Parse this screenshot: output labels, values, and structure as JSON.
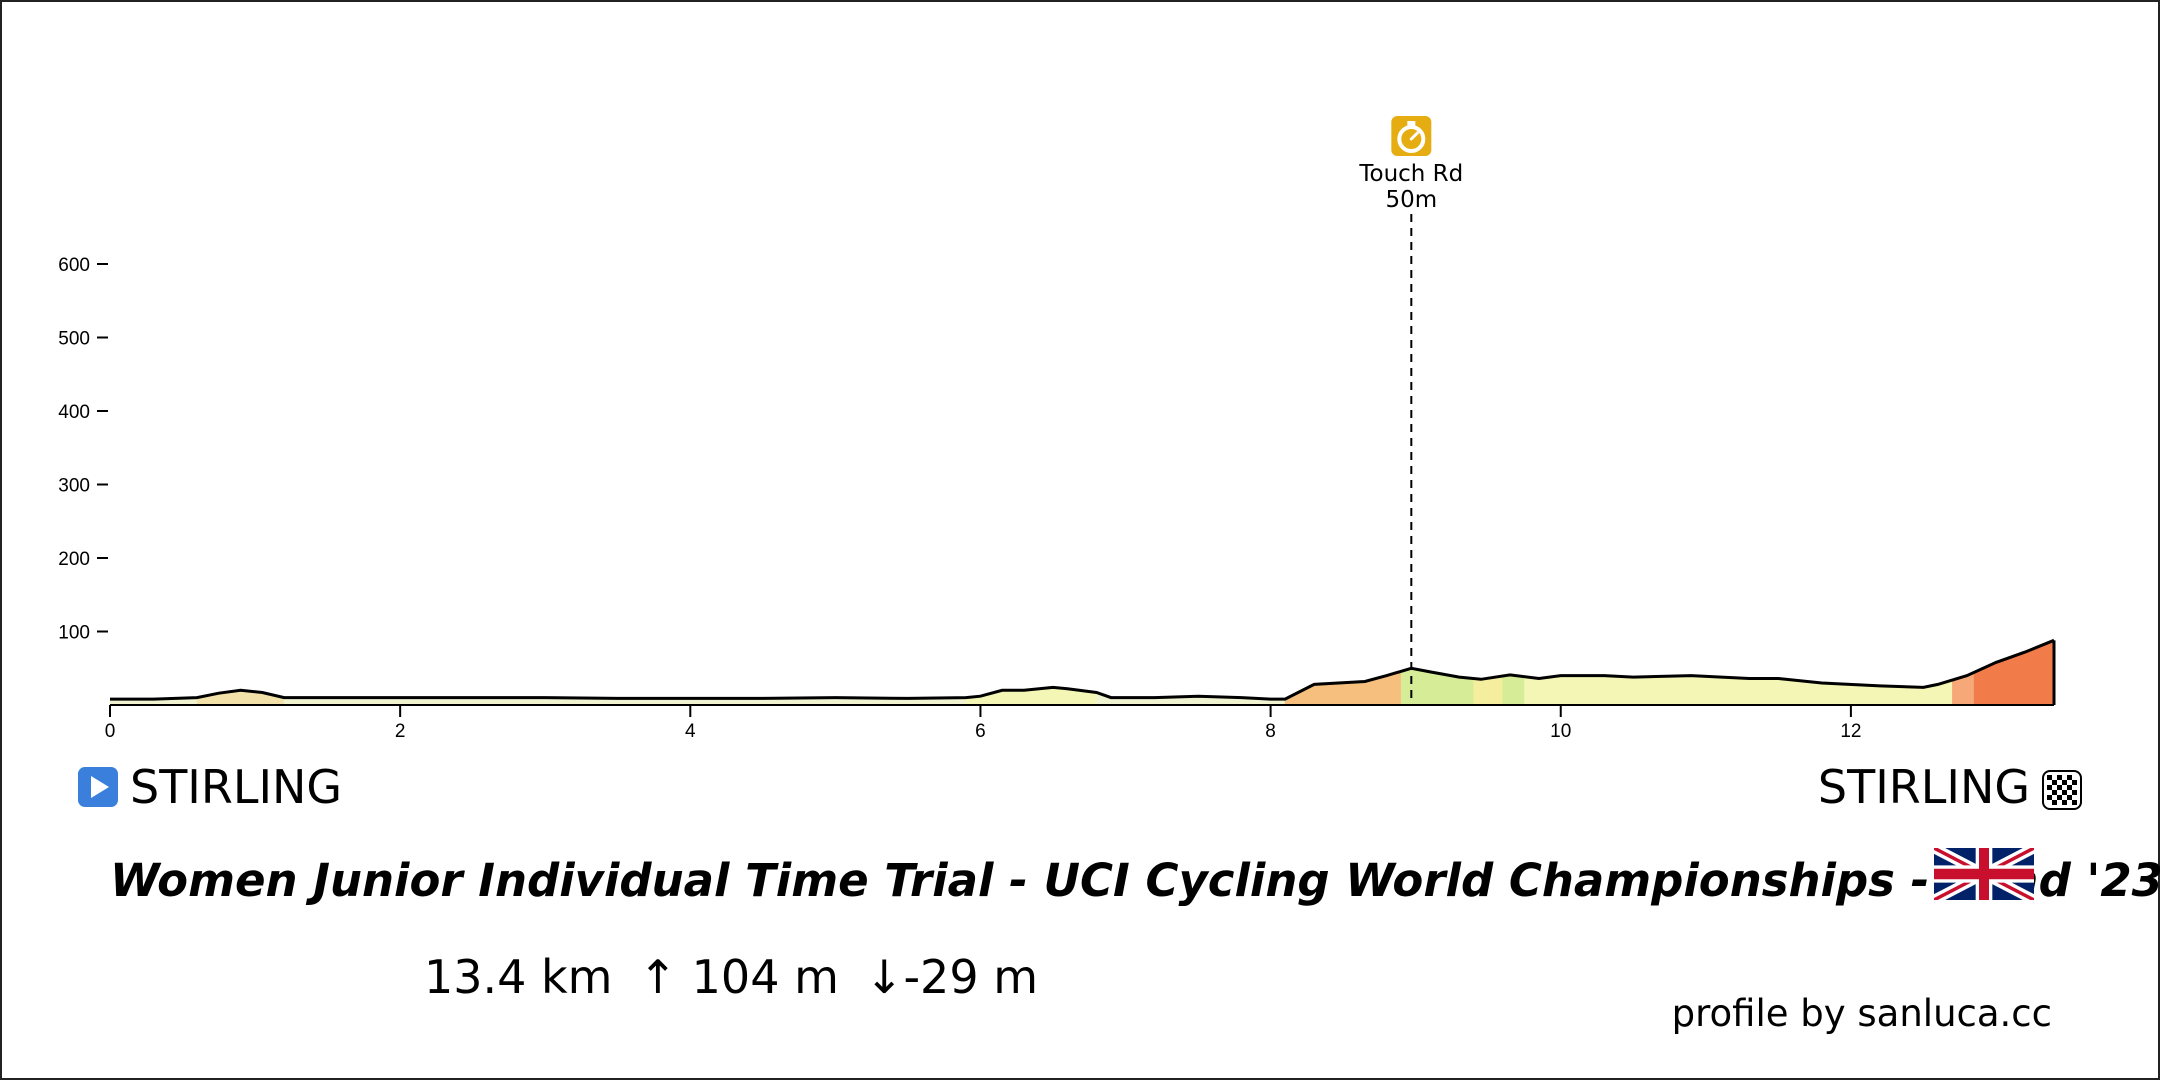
{
  "chart_data": {
    "type": "area",
    "title": "Women Junior Individual Time Trial - UCI Cycling World Championships - Road '23",
    "xlabel": "",
    "ylabel": "",
    "xlim": [
      0,
      13.4
    ],
    "ylim": [
      0,
      650
    ],
    "x_ticks": [
      0,
      2,
      4,
      6,
      8,
      10,
      12
    ],
    "y_ticks": [
      100,
      200,
      300,
      400,
      500,
      600
    ],
    "grid": false,
    "profile": {
      "x": [
        0,
        0.3,
        0.6,
        0.75,
        0.9,
        1.05,
        1.2,
        1.5,
        2,
        2.5,
        3,
        3.5,
        4,
        4.5,
        5,
        5.5,
        5.9,
        6.0,
        6.15,
        6.3,
        6.5,
        6.6,
        6.8,
        6.9,
        7.2,
        7.5,
        7.8,
        8.0,
        8.1,
        8.3,
        8.65,
        8.8,
        8.97,
        9.1,
        9.3,
        9.45,
        9.65,
        9.85,
        10.0,
        10.3,
        10.5,
        10.9,
        11.3,
        11.5,
        11.8,
        12.2,
        12.5,
        12.6,
        12.8,
        13.0,
        13.2,
        13.4
      ],
      "y": [
        8,
        8,
        10,
        16,
        20,
        17,
        10,
        10,
        10,
        10,
        10,
        9,
        9,
        9,
        10,
        9,
        10,
        12,
        20,
        20,
        24,
        22,
        17,
        10,
        10,
        12,
        10,
        8,
        8,
        28,
        32,
        40,
        50,
        45,
        38,
        35,
        41,
        36,
        40,
        40,
        38,
        40,
        36,
        36,
        30,
        26,
        24,
        28,
        40,
        58,
        72,
        88
      ]
    },
    "segments": [
      {
        "x0": 0,
        "x1": 0.6,
        "color": "#f0f3cf"
      },
      {
        "x0": 0.6,
        "x1": 1.2,
        "color": "#f2e2aa"
      },
      {
        "x0": 1.2,
        "x1": 5.9,
        "color": "#f0f3cf"
      },
      {
        "x0": 5.9,
        "x1": 6.8,
        "color": "#f3f6b4"
      },
      {
        "x0": 6.8,
        "x1": 8.1,
        "color": "#f0f3cf"
      },
      {
        "x0": 8.1,
        "x1": 8.9,
        "color": "#f6bf7e"
      },
      {
        "x0": 8.9,
        "x1": 9.4,
        "color": "#d7ec96"
      },
      {
        "x0": 9.4,
        "x1": 9.6,
        "color": "#f5ee9e"
      },
      {
        "x0": 9.6,
        "x1": 9.75,
        "color": "#d7ec96"
      },
      {
        "x0": 9.75,
        "x1": 12.7,
        "color": "#f3f6b4"
      },
      {
        "x0": 12.7,
        "x1": 12.85,
        "color": "#f6a878"
      },
      {
        "x0": 12.85,
        "x1": 13.4,
        "color": "#f27b4a"
      }
    ],
    "marker": {
      "x": 8.97,
      "name": "Touch Rd",
      "elevation_label": "50m",
      "color": "#e6ad12"
    }
  },
  "start": {
    "label": "STIRLING",
    "icon": "play-icon",
    "color": "#3b7fdc"
  },
  "finish": {
    "label": "STIRLING",
    "icon": "checkered-flag-icon"
  },
  "title": "Women Junior Individual Time Trial - UCI Cycling World Championships - Road '23",
  "flag_icon": "union-jack-flag-icon",
  "stats": {
    "distance": "13.4 km",
    "ascent": "↑ 104 m",
    "descent": "↓-29 m"
  },
  "credit": "profile by sanluca.cc"
}
